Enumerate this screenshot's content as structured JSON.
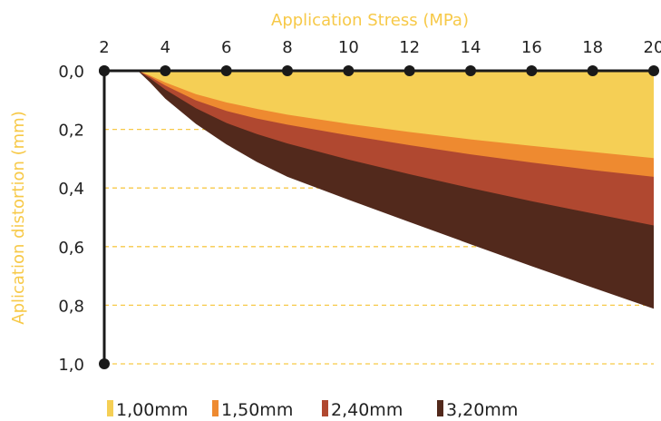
{
  "chart_data": {
    "type": "area",
    "xlabel": "Application Stress (MPa)",
    "ylabel": "Aplication distortion (mm)",
    "x_ticks": [
      "2",
      "4",
      "6",
      "8",
      "10",
      "12",
      "14",
      "16",
      "18",
      "20"
    ],
    "y_ticks": [
      "0,0",
      "0,2",
      "0,4",
      "0,6",
      "0,8",
      "1,0"
    ],
    "xlim": [
      2,
      20
    ],
    "ylim": [
      0,
      1.0
    ],
    "y_inverted": true,
    "x_axis_position": "top",
    "grid": "horizontal-dashed",
    "legend_position": "bottom",
    "colors": {
      "axis": "#1a1a1a",
      "grid": "#f7c948",
      "title": "#f7c948"
    },
    "x": [
      3.1,
      3.5,
      4,
      5,
      6,
      7,
      8,
      10,
      12,
      14,
      16,
      18,
      20
    ],
    "series": [
      {
        "name": "1,00mm",
        "color": "#f5cf55",
        "values": [
          0,
          0.016,
          0.04,
          0.08,
          0.108,
          0.13,
          0.15,
          0.181,
          0.209,
          0.234,
          0.256,
          0.277,
          0.298
        ]
      },
      {
        "name": "1,50mm",
        "color": "#ee8a30",
        "values": [
          0,
          0.02,
          0.05,
          0.101,
          0.137,
          0.163,
          0.184,
          0.22,
          0.254,
          0.285,
          0.313,
          0.339,
          0.362
        ]
      },
      {
        "name": "2,40mm",
        "color": "#b04830",
        "values": [
          0,
          0.026,
          0.064,
          0.128,
          0.178,
          0.216,
          0.248,
          0.303,
          0.353,
          0.4,
          0.445,
          0.487,
          0.528
        ]
      },
      {
        "name": "3,20mm",
        "color": "#52291c",
        "values": [
          0,
          0.04,
          0.095,
          0.181,
          0.251,
          0.311,
          0.362,
          0.44,
          0.516,
          0.592,
          0.667,
          0.74,
          0.812
        ]
      }
    ]
  }
}
